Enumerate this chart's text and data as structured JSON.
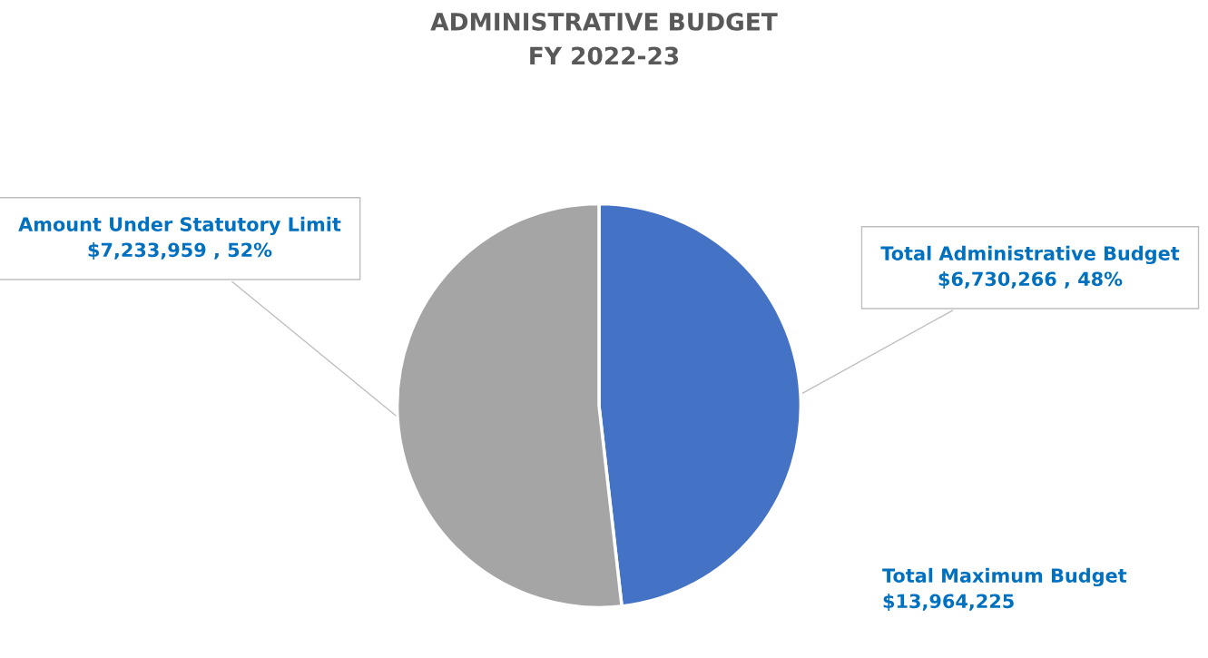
{
  "chart_data": {
    "type": "pie",
    "title": "ADMINISTRATIVE BUDGET\nFY 2022-23",
    "categories": [
      "Total Administrative Budget",
      "Amount Under Statutory Limit"
    ],
    "values": [
      6730266,
      7233959
    ],
    "value_labels": [
      "$6,730,266 , 48%",
      "$7,233,959 , 52%"
    ],
    "colors": [
      "#4472c4",
      "#a5a5a5"
    ],
    "annotations": [
      "Total Maximum Budget\n$13,964,225"
    ],
    "legend": false
  }
}
